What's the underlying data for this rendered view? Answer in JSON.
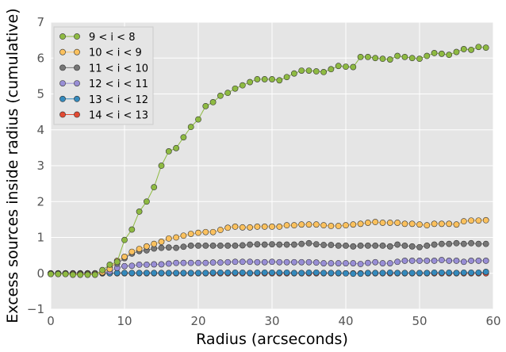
{
  "chart_data": {
    "type": "line",
    "title": "",
    "xlabel": "Radius (arcseconds)",
    "ylabel": "Excess sources inside radius (cumulative)",
    "xlim": [
      0,
      60
    ],
    "ylim": [
      -1,
      7
    ],
    "xticks": [
      "0",
      "10",
      "20",
      "30",
      "40",
      "50",
      "60"
    ],
    "yticks": [
      "−1",
      "0",
      "1",
      "2",
      "3",
      "4",
      "5",
      "6",
      "7"
    ],
    "grid": true,
    "legend_position": "top-left",
    "x": [
      0,
      1,
      2,
      3,
      4,
      5,
      6,
      7,
      8,
      9,
      10,
      11,
      12,
      13,
      14,
      15,
      16,
      17,
      18,
      19,
      20,
      21,
      22,
      23,
      24,
      25,
      26,
      27,
      28,
      29,
      30,
      31,
      32,
      33,
      34,
      35,
      36,
      37,
      38,
      39,
      40,
      41,
      42,
      43,
      44,
      45,
      46,
      47,
      48,
      49,
      50,
      51,
      52,
      53,
      54,
      55,
      56,
      57,
      58,
      59
    ],
    "series": [
      {
        "name": "9 < i < 8",
        "color": "#8EBA42",
        "values": [
          -0.02,
          -0.02,
          -0.02,
          -0.04,
          -0.04,
          -0.04,
          -0.04,
          0.09,
          0.24,
          0.32,
          0.93,
          1.22,
          1.72,
          2.0,
          2.4,
          3.0,
          3.4,
          3.49,
          3.79,
          4.08,
          4.29,
          4.66,
          4.77,
          4.95,
          5.03,
          5.15,
          5.24,
          5.33,
          5.41,
          5.41,
          5.41,
          5.38,
          5.47,
          5.57,
          5.65,
          5.65,
          5.63,
          5.61,
          5.69,
          5.78,
          5.76,
          5.75,
          6.03,
          6.03,
          6.0,
          5.98,
          5.96,
          6.06,
          6.03,
          6.0,
          5.98,
          6.06,
          6.14,
          6.12,
          6.09,
          6.17,
          6.25,
          6.23,
          6.31,
          6.29
        ]
      },
      {
        "name": "10 < i < 9",
        "color": "#FBC15E",
        "values": [
          -0.02,
          -0.02,
          -0.02,
          -0.02,
          -0.02,
          -0.02,
          -0.02,
          0.03,
          0.12,
          0.35,
          0.46,
          0.6,
          0.68,
          0.75,
          0.82,
          0.88,
          0.97,
          1.0,
          1.05,
          1.1,
          1.13,
          1.15,
          1.15,
          1.21,
          1.27,
          1.3,
          1.28,
          1.28,
          1.3,
          1.3,
          1.3,
          1.3,
          1.34,
          1.34,
          1.36,
          1.36,
          1.36,
          1.34,
          1.32,
          1.32,
          1.34,
          1.36,
          1.38,
          1.41,
          1.43,
          1.41,
          1.41,
          1.41,
          1.38,
          1.38,
          1.36,
          1.34,
          1.38,
          1.38,
          1.38,
          1.36,
          1.45,
          1.47,
          1.47,
          1.48
        ]
      },
      {
        "name": "11 < i < 10",
        "color": "#777777",
        "values": [
          -0.01,
          -0.01,
          -0.01,
          -0.01,
          -0.01,
          -0.01,
          0.0,
          0.02,
          0.18,
          0.27,
          0.42,
          0.55,
          0.62,
          0.64,
          0.69,
          0.71,
          0.72,
          0.71,
          0.74,
          0.77,
          0.77,
          0.77,
          0.77,
          0.77,
          0.77,
          0.77,
          0.78,
          0.8,
          0.81,
          0.8,
          0.81,
          0.8,
          0.8,
          0.8,
          0.82,
          0.84,
          0.81,
          0.79,
          0.79,
          0.77,
          0.77,
          0.75,
          0.77,
          0.77,
          0.77,
          0.77,
          0.75,
          0.8,
          0.77,
          0.75,
          0.73,
          0.77,
          0.8,
          0.82,
          0.82,
          0.84,
          0.82,
          0.84,
          0.82,
          0.82
        ]
      },
      {
        "name": "12 < i < 11",
        "color": "#988ED5",
        "values": [
          0.0,
          0.0,
          0.0,
          0.0,
          0.0,
          0.0,
          0.0,
          0.01,
          0.05,
          0.15,
          0.2,
          0.21,
          0.24,
          0.24,
          0.25,
          0.25,
          0.27,
          0.29,
          0.29,
          0.29,
          0.29,
          0.29,
          0.3,
          0.3,
          0.31,
          0.32,
          0.32,
          0.32,
          0.31,
          0.31,
          0.32,
          0.31,
          0.31,
          0.31,
          0.31,
          0.31,
          0.3,
          0.28,
          0.28,
          0.28,
          0.28,
          0.28,
          0.26,
          0.29,
          0.31,
          0.28,
          0.28,
          0.32,
          0.35,
          0.35,
          0.35,
          0.35,
          0.35,
          0.37,
          0.35,
          0.35,
          0.32,
          0.35,
          0.35,
          0.35
        ]
      },
      {
        "name": "13 < i < 12",
        "color": "#348ABD",
        "values": [
          0.0,
          0.0,
          0.0,
          0.0,
          0.0,
          0.0,
          0.0,
          0.0,
          0.0,
          0.01,
          0.01,
          0.01,
          0.01,
          0.01,
          0.01,
          0.01,
          0.01,
          0.01,
          0.01,
          0.01,
          0.01,
          0.01,
          0.02,
          0.02,
          0.02,
          0.02,
          0.02,
          0.01,
          0.02,
          0.02,
          0.02,
          0.02,
          0.02,
          0.01,
          0.01,
          0.02,
          0.02,
          0.01,
          0.01,
          0.01,
          0.0,
          -0.01,
          -0.01,
          0.01,
          0.01,
          0.01,
          0.02,
          0.01,
          0.01,
          0.01,
          0.01,
          0.01,
          0.02,
          0.02,
          0.02,
          0.01,
          0.02,
          0.02,
          0.02,
          0.04
        ]
      },
      {
        "name": "14 < i < 13",
        "color": "#E24A33",
        "values": [
          0.0,
          0.0,
          0.0,
          0.0,
          0.0,
          0.0,
          0.0,
          0.0,
          0.0,
          0.0,
          0.0,
          0.0,
          0.0,
          0.0,
          0.0,
          0.0,
          0.0,
          0.0,
          0.0,
          0.0,
          0.0,
          0.0,
          0.0,
          0.0,
          0.0,
          0.0,
          0.0,
          0.0,
          0.0,
          0.0,
          0.0,
          0.0,
          0.0,
          0.0,
          0.0,
          0.0,
          0.0,
          0.0,
          0.0,
          0.0,
          0.0,
          0.0,
          0.0,
          0.0,
          0.0,
          0.0,
          0.0,
          0.0,
          0.0,
          0.0,
          0.0,
          0.0,
          0.0,
          0.0,
          0.0,
          0.0,
          0.0,
          0.0,
          0.0,
          0.0
        ]
      }
    ]
  }
}
